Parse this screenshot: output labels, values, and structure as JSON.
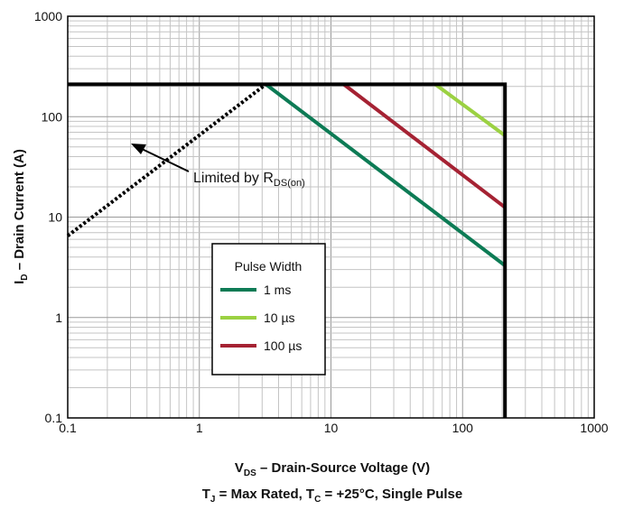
{
  "chart_data": {
    "type": "line",
    "x_scale": "log",
    "y_scale": "log",
    "xlim": [
      0.1,
      1000
    ],
    "ylim": [
      0.1,
      1000
    ],
    "grid": true,
    "x_ticks": [
      "0.1",
      "1",
      "10",
      "100",
      "1000"
    ],
    "y_ticks": [
      "0.1",
      "1",
      "10",
      "100",
      "1000"
    ],
    "xlabel": {
      "main": "V",
      "sub": "DS",
      "rest": " – Drain-Source Voltage (V)"
    },
    "ylabel": {
      "main": "I",
      "sub": "D",
      "rest": " – Drain Current (A)"
    },
    "caption": {
      "p1": "T",
      "s1": "J",
      "p2": " = Max Rated, T",
      "s2": "C",
      "p3": " = +25°C, Single Pulse"
    },
    "annotation": {
      "text": "Limited by R",
      "sub": "DS(on)"
    },
    "legend": {
      "title": "Pulse Width",
      "position": "center-left"
    },
    "boundary": {
      "name": "SOA limit",
      "color": "#000000",
      "points": [
        [
          0.1,
          210
        ],
        [
          210,
          210
        ],
        [
          210,
          0.1
        ]
      ]
    },
    "rds_line": {
      "color": "#000000",
      "style": "dotted",
      "points": [
        [
          0.1,
          6.5
        ],
        [
          3.2,
          210
        ]
      ]
    },
    "series": [
      {
        "name": "1 ms",
        "color": "#0d7b55",
        "points": [
          [
            3.2,
            210
          ],
          [
            210,
            3.3
          ]
        ]
      },
      {
        "name": "10 µs",
        "color": "#9bd142",
        "points": [
          [
            62,
            210
          ],
          [
            210,
            65
          ]
        ]
      },
      {
        "name": "100 µs",
        "color": "#a52233",
        "points": [
          [
            12.5,
            210
          ],
          [
            210,
            12.5
          ]
        ]
      }
    ]
  }
}
